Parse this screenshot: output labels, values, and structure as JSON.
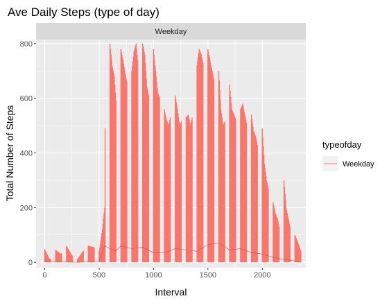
{
  "chart_data": {
    "type": "bar",
    "title": "Ave Daily Steps (type of day)",
    "facet_label": "Weekday",
    "xlabel": "Interval",
    "ylabel": "Total Number of Steps",
    "xlim": [
      -80,
      2400
    ],
    "ylim": [
      -20,
      815
    ],
    "x_ticks": [
      0,
      500,
      1000,
      1500,
      2000
    ],
    "y_ticks": [
      0,
      200,
      400,
      600,
      800
    ],
    "grid": true,
    "legend": {
      "title": "typeofday",
      "position": "right",
      "entries": [
        "Weekday"
      ]
    },
    "colors": {
      "series": "#F8766D",
      "panel": "#EBEBEB",
      "strip": "#D9D9D9",
      "grid": "#FFFFFF"
    },
    "bar_envelope": {
      "x": [
        0,
        20,
        40,
        60,
        100,
        150,
        200,
        250,
        300,
        350,
        400,
        450,
        500,
        530,
        550,
        560,
        580,
        600,
        620,
        640,
        660,
        700,
        720,
        740,
        760,
        800,
        820,
        840,
        860,
        900,
        920,
        940,
        960,
        1000,
        1020,
        1040,
        1060,
        1100,
        1120,
        1140,
        1160,
        1200,
        1220,
        1240,
        1260,
        1300,
        1320,
        1340,
        1360,
        1400,
        1420,
        1440,
        1460,
        1500,
        1520,
        1540,
        1560,
        1600,
        1620,
        1640,
        1660,
        1700,
        1720,
        1740,
        1760,
        1800,
        1820,
        1840,
        1860,
        1900,
        1920,
        1940,
        1960,
        2000,
        2020,
        2040,
        2060,
        2100,
        2120,
        2140,
        2160,
        2200,
        2220,
        2240,
        2260,
        2300,
        2320,
        2340,
        2355
      ],
      "y": [
        48,
        30,
        15,
        8,
        45,
        30,
        60,
        25,
        10,
        40,
        60,
        55,
        40,
        120,
        200,
        780,
        790,
        800,
        720,
        680,
        560,
        780,
        740,
        690,
        650,
        700,
        770,
        800,
        720,
        800,
        760,
        640,
        600,
        780,
        700,
        620,
        600,
        560,
        520,
        500,
        540,
        610,
        560,
        500,
        520,
        530,
        540,
        500,
        540,
        720,
        780,
        760,
        720,
        780,
        740,
        700,
        660,
        700,
        560,
        500,
        520,
        650,
        560,
        540,
        520,
        560,
        580,
        540,
        500,
        540,
        480,
        460,
        420,
        490,
        360,
        300,
        260,
        220,
        180,
        160,
        120,
        300,
        200,
        160,
        120,
        100,
        80,
        60,
        40
      ]
    },
    "mean_line": {
      "x": [
        0,
        100,
        200,
        300,
        400,
        500,
        550,
        600,
        650,
        700,
        800,
        900,
        1000,
        1100,
        1200,
        1300,
        1400,
        1500,
        1600,
        1700,
        1800,
        1900,
        2000,
        2100,
        2200,
        2300,
        2355
      ],
      "y": [
        2,
        1,
        1,
        0,
        2,
        5,
        60,
        50,
        40,
        60,
        50,
        55,
        35,
        35,
        50,
        45,
        40,
        65,
        70,
        45,
        50,
        35,
        30,
        18,
        10,
        5,
        2
      ]
    }
  }
}
